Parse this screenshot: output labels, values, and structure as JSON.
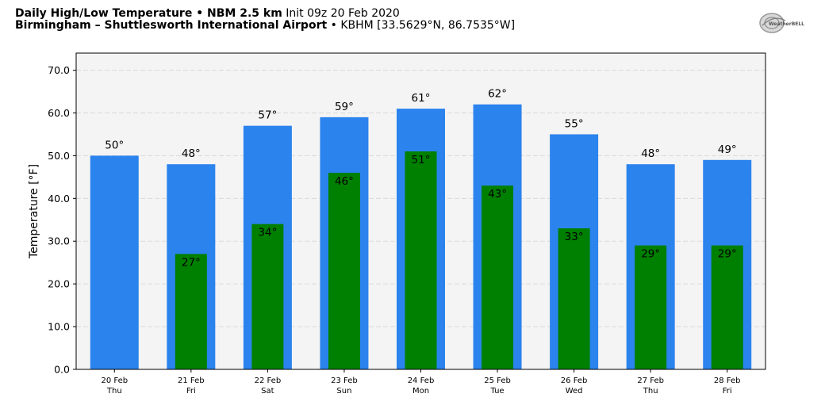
{
  "header": {
    "line1_bold": "Daily High/Low Temperature • NBM 2.5 km",
    "line1_normal": " Init 09z 20 Feb 2020",
    "line2_bold": "Birmingham – Shuttlesworth International Airport",
    "line2_normal": " • KBHM [33.5629°N, 86.7535°W]",
    "logo_text": "WeatherBELL"
  },
  "colors": {
    "high_bar": "#2b83ee",
    "low_bar": "#008000",
    "plot_background": "#f4f4f4",
    "grid": "#d9d9d9"
  },
  "chart_data": {
    "type": "bar",
    "title": "Daily High/Low Temperature • NBM 2.5 km",
    "ylabel": "Temperature [°F]",
    "xlabel": "",
    "ylim": [
      0,
      74
    ],
    "yticks": [
      "0.0",
      "10.0",
      "20.0",
      "30.0",
      "40.0",
      "50.0",
      "60.0",
      "70.0"
    ],
    "grid": true,
    "categories": [
      "20 Feb",
      "21 Feb",
      "22 Feb",
      "23 Feb",
      "24 Feb",
      "25 Feb",
      "26 Feb",
      "27 Feb",
      "28 Feb"
    ],
    "weekdays": [
      "Thu",
      "Fri",
      "Sat",
      "Sun",
      "Mon",
      "Tue",
      "Wed",
      "Thu",
      "Fri"
    ],
    "series": [
      {
        "values": [
          50,
          48,
          57,
          59,
          61,
          62,
          55,
          48,
          49
        ],
        "labels": [
          "50°",
          "48°",
          "57°",
          "59°",
          "61°",
          "62°",
          "55°",
          "48°",
          "49°"
        ]
      },
      {
        "values": [
          null,
          27,
          34,
          46,
          51,
          43,
          33,
          29,
          29
        ],
        "labels": [
          "",
          "27°",
          "34°",
          "46°",
          "51°",
          "43°",
          "33°",
          "29°",
          "29°"
        ]
      }
    ]
  }
}
